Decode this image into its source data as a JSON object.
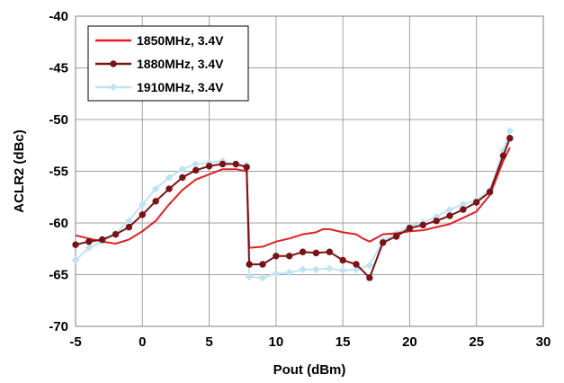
{
  "chart_data": {
    "type": "line",
    "title": "",
    "xlabel": "Pout (dBm)",
    "ylabel": "ACLR2 (dBc)",
    "xlim": [
      -5,
      30
    ],
    "ylim": [
      -70,
      -40
    ],
    "xticks": [
      -5,
      0,
      5,
      10,
      15,
      20,
      25,
      30
    ],
    "yticks": [
      -40,
      -45,
      -50,
      -55,
      -60,
      -65,
      -70
    ],
    "xtick_labels": [
      "-5",
      "0",
      "5",
      "10",
      "15",
      "20",
      "25",
      "30"
    ],
    "ytick_labels": [
      "-40",
      "-45",
      "-50",
      "-55",
      "-60",
      "-65",
      "-70"
    ],
    "grid": true,
    "legend_position": "top-left",
    "series": [
      {
        "name": "1850MHz, 3.4V",
        "color": "#e31e24",
        "marker": "none",
        "x": [
          -5,
          -4,
          -3,
          -2,
          -1,
          0,
          1,
          2,
          3,
          4,
          5,
          6,
          7,
          7.8,
          8,
          9,
          10,
          11,
          12,
          13,
          13.5,
          14,
          15,
          16,
          16.5,
          17,
          18,
          19,
          20,
          21,
          22,
          23,
          24,
          25,
          26,
          27,
          27.5
        ],
        "y": [
          -61.2,
          -61.5,
          -61.8,
          -62.0,
          -61.6,
          -60.8,
          -59.8,
          -58.2,
          -56.8,
          -55.8,
          -55.3,
          -54.8,
          -54.8,
          -55.0,
          -62.4,
          -62.3,
          -61.8,
          -61.5,
          -61.1,
          -60.9,
          -60.6,
          -60.6,
          -60.9,
          -61.1,
          -61.5,
          -61.8,
          -61.1,
          -61.0,
          -60.8,
          -60.7,
          -60.4,
          -60.1,
          -59.5,
          -58.9,
          -57.3,
          -54.0,
          -52.7
        ]
      },
      {
        "name": "1880MHz, 3.4V",
        "color": "#7b1216",
        "marker": "circle",
        "x": [
          -5,
          -4,
          -3,
          -2,
          -1,
          0,
          1,
          2,
          3,
          4,
          5,
          6,
          7,
          7.8,
          8,
          9,
          10,
          11,
          12,
          13,
          14,
          15,
          16,
          17,
          18,
          19,
          20,
          21,
          22,
          23,
          24,
          25,
          26,
          27,
          27.5
        ],
        "y": [
          -62.1,
          -61.8,
          -61.6,
          -61.1,
          -60.4,
          -59.2,
          -57.9,
          -56.7,
          -55.6,
          -54.9,
          -54.5,
          -54.3,
          -54.3,
          -54.6,
          -64.0,
          -64.0,
          -63.2,
          -63.2,
          -62.8,
          -62.9,
          -62.8,
          -63.6,
          -64.0,
          -65.3,
          -61.9,
          -61.3,
          -60.5,
          -60.2,
          -59.8,
          -59.3,
          -58.7,
          -58.0,
          -57.0,
          -53.5,
          -51.8
        ]
      },
      {
        "name": "1910MHz, 3.4V",
        "color": "#bfe3f0",
        "marker": "diamond",
        "x": [
          -5,
          -4,
          -3,
          -2,
          -1,
          0,
          1,
          2,
          3,
          4,
          5,
          6,
          7,
          7.8,
          8,
          9,
          10,
          11,
          12,
          13,
          14,
          15,
          16,
          17,
          18,
          19,
          20,
          21,
          22,
          23,
          24,
          25,
          26,
          27,
          27.5
        ],
        "y": [
          -63.6,
          -62.4,
          -61.8,
          -61.0,
          -59.8,
          -58.2,
          -56.7,
          -55.6,
          -54.8,
          -54.3,
          -54.2,
          -54.0,
          -54.4,
          -54.4,
          -65.2,
          -65.3,
          -64.9,
          -64.8,
          -64.5,
          -64.5,
          -64.4,
          -64.6,
          -64.5,
          -64.1,
          -61.7,
          -61.0,
          -60.3,
          -60.0,
          -59.4,
          -58.7,
          -58.2,
          -57.8,
          -56.8,
          -53.0,
          -51.1
        ]
      }
    ]
  }
}
